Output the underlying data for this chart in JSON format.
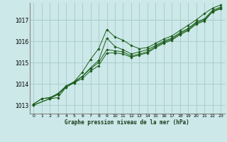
{
  "xlabel": "Graphe pression niveau de la mer (hPa)",
  "bg_color": "#cce8e8",
  "grid_color": "#aacece",
  "line_color": "#1a5c1a",
  "xlim": [
    -0.5,
    23.5
  ],
  "ylim": [
    1012.6,
    1017.8
  ],
  "xticks": [
    0,
    1,
    2,
    3,
    4,
    5,
    6,
    7,
    8,
    9,
    10,
    11,
    12,
    13,
    14,
    15,
    16,
    17,
    18,
    19,
    20,
    21,
    22,
    23
  ],
  "yticks": [
    1013,
    1014,
    1015,
    1016,
    1017
  ],
  "series": [
    [
      1013.0,
      null,
      1013.3,
      1013.35,
      1013.85,
      1014.1,
      1014.55,
      1015.15,
      1015.65,
      1016.55,
      1016.2,
      1016.05,
      1015.8,
      1015.65,
      1015.7,
      1015.9,
      1016.1,
      1016.25,
      1016.5,
      1016.75,
      1017.0,
      1017.3,
      1017.55,
      1017.7
    ],
    [
      1013.0,
      null,
      1013.3,
      1013.5,
      1013.85,
      1014.05,
      1014.35,
      1014.75,
      1015.1,
      1016.15,
      1015.75,
      1015.6,
      1015.4,
      1015.5,
      1015.6,
      1015.8,
      1016.0,
      1016.15,
      1016.4,
      1016.6,
      1016.9,
      1017.05,
      1017.45,
      1017.6
    ],
    [
      1013.05,
      1013.3,
      1013.35,
      1013.55,
      1013.9,
      1014.1,
      1014.35,
      1014.7,
      1015.0,
      1015.6,
      1015.55,
      1015.5,
      1015.3,
      1015.4,
      1015.5,
      1015.75,
      1015.95,
      1016.1,
      1016.35,
      1016.55,
      1016.85,
      1017.0,
      1017.4,
      1017.55
    ],
    [
      1013.05,
      1013.3,
      1013.35,
      1013.5,
      1013.85,
      1014.05,
      1014.25,
      1014.6,
      1014.85,
      1015.45,
      1015.45,
      1015.4,
      1015.25,
      1015.35,
      1015.45,
      1015.7,
      1015.9,
      1016.05,
      1016.3,
      1016.5,
      1016.8,
      1016.95,
      1017.38,
      1017.52
    ]
  ]
}
